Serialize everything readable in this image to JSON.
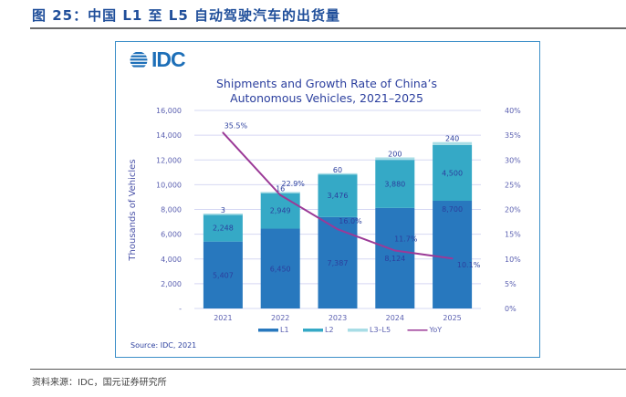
{
  "figure": {
    "title": "图 25：中国 L1 至 L5 自动驾驶汽车的出货量",
    "source_note": "资料来源：IDC，国元证券研究所"
  },
  "logo": {
    "text": "IDC",
    "icon": "idc-globe-icon"
  },
  "chart_data": {
    "type": "bar",
    "stacked": true,
    "title": "Shipments and Growth Rate of China's Autonomous Vehicles, 2021–2025",
    "title_lines": [
      "Shipments and Growth Rate of China’s",
      "Autonomous Vehicles, 2021–2025"
    ],
    "xlabel": "",
    "ylabel": "Thousands of Vehicles",
    "y2label": "",
    "categories": [
      "2021",
      "2022",
      "2023",
      "2024",
      "2025"
    ],
    "ylim": [
      0,
      16000
    ],
    "yticks": [
      0,
      2000,
      4000,
      6000,
      8000,
      10000,
      12000,
      14000,
      16000
    ],
    "ytick_labels": [
      "-",
      "2,000",
      "4,000",
      "6,000",
      "8,000",
      "10,000",
      "12,000",
      "14,000",
      "16,000"
    ],
    "y2lim": [
      0,
      40
    ],
    "y2ticks": [
      0,
      5,
      10,
      15,
      20,
      25,
      30,
      35,
      40
    ],
    "y2tick_labels": [
      "0%",
      "5%",
      "10%",
      "15%",
      "20%",
      "25%",
      "30%",
      "35%",
      "40%"
    ],
    "grid": true,
    "legend_position": "bottom",
    "series": [
      {
        "name": "L1",
        "type": "bar",
        "color": "#2878be",
        "values": [
          5407,
          6450,
          7387,
          8124,
          8700
        ],
        "labels": [
          "5,407",
          "6,450",
          "7,387",
          "8,124",
          "8,700"
        ]
      },
      {
        "name": "L2",
        "type": "bar",
        "color": "#35a9c6",
        "values": [
          2248,
          2949,
          3476,
          3880,
          4500
        ],
        "labels": [
          "2,248",
          "2,949",
          "3,476",
          "3,880",
          "4,500"
        ]
      },
      {
        "name": "L3–L5",
        "type": "bar",
        "color": "#a8dde6",
        "values": [
          3,
          16,
          60,
          200,
          240
        ],
        "labels": [
          "3",
          "16",
          "60",
          "200",
          "240"
        ]
      },
      {
        "name": "YoY",
        "type": "line",
        "axis": "right",
        "color": "#9b3a97",
        "values": [
          35.5,
          22.9,
          16.0,
          11.7,
          10.1
        ],
        "labels": [
          "35.5%",
          "22.9%",
          "16.0%",
          "11.7%",
          "10.1%"
        ]
      }
    ],
    "label_color": "#2b3f9e",
    "axis_text_color": "#5a5fb0",
    "source": "Source: IDC, 2021"
  }
}
